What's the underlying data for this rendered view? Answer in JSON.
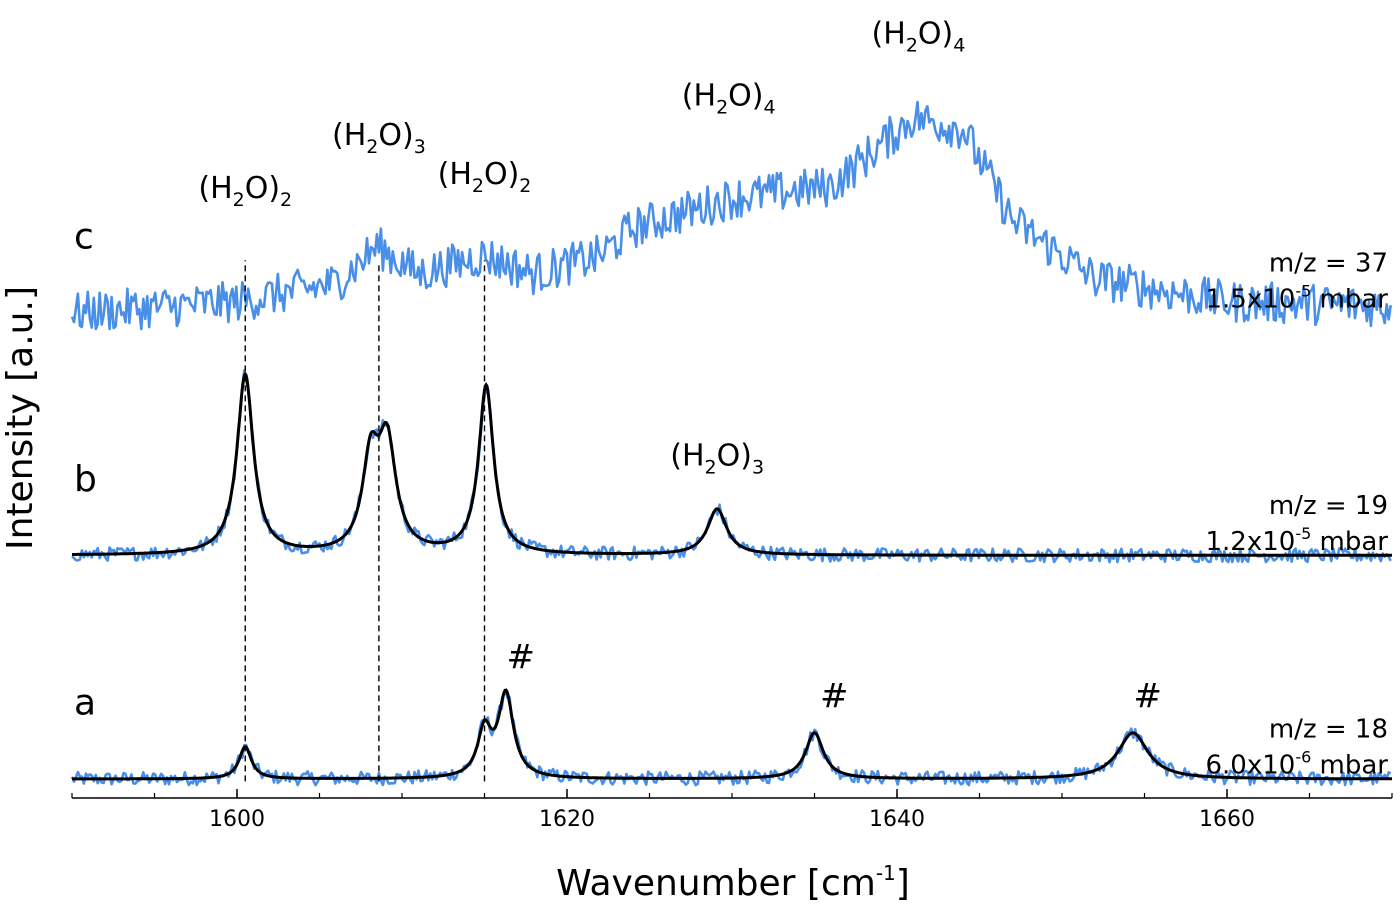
{
  "chart_data": {
    "type": "line",
    "xlabel": "Wavenumber [cm",
    "xlabel_sup": "-1",
    "xlabel_end": "]",
    "ylabel": "Intensity [a.u.]",
    "xlim": [
      1590,
      1670
    ],
    "ylim": [
      0,
      3.3
    ],
    "y_ticks_shown": false,
    "grid": false,
    "colors": {
      "data": "#4a8fe7",
      "fit": "#000000",
      "guide": "#000000"
    },
    "x_ticks": [
      {
        "value": 1600,
        "label": "1600"
      },
      {
        "value": 1620,
        "label": "1620"
      },
      {
        "value": 1640,
        "label": "1640"
      },
      {
        "value": 1660,
        "label": "1660"
      }
    ],
    "x_minor_step": 5,
    "panels": [
      {
        "id": "a",
        "letter": "a",
        "mz": "m/z = 18",
        "pressure_mantissa": "6.0x10",
        "pressure_exp": "-6",
        "pressure_unit": " mbar",
        "baseline": 0.03,
        "noise": 0.03,
        "peaks": [
          {
            "x": 1600.5,
            "amp": 0.14,
            "width": 0.45
          },
          {
            "x": 1615.0,
            "amp": 0.2,
            "width": 0.5
          },
          {
            "x": 1616.3,
            "amp": 0.36,
            "width": 0.55
          },
          {
            "x": 1635.0,
            "amp": 0.2,
            "width": 0.65
          },
          {
            "x": 1654.3,
            "amp": 0.2,
            "width": 1.1
          }
        ]
      },
      {
        "id": "b",
        "letter": "b",
        "mz": "m/z = 19",
        "pressure_mantissa": "1.2x10",
        "pressure_exp": "-5",
        "pressure_unit": " mbar",
        "baseline": 1.0,
        "noise": 0.03,
        "peaks": [
          {
            "x": 1600.5,
            "amp": 0.78,
            "width": 0.6
          },
          {
            "x": 1608.1,
            "amp": 0.38,
            "width": 0.6
          },
          {
            "x": 1609.1,
            "amp": 0.46,
            "width": 0.65
          },
          {
            "x": 1615.1,
            "amp": 0.73,
            "width": 0.55
          },
          {
            "x": 1629.1,
            "amp": 0.2,
            "width": 0.7
          }
        ]
      },
      {
        "id": "c",
        "letter": "c",
        "mz": "m/z = 37",
        "pressure_mantissa": "1.5x10",
        "pressure_exp": "-5",
        "pressure_unit": " mbar",
        "baseline": 2.05,
        "noise": 0.09,
        "envelope": [
          {
            "x": 1590,
            "y": 2.05
          },
          {
            "x": 1600,
            "y": 2.1
          },
          {
            "x": 1606,
            "y": 2.18
          },
          {
            "x": 1608.5,
            "y": 2.34
          },
          {
            "x": 1611,
            "y": 2.22
          },
          {
            "x": 1615,
            "y": 2.3
          },
          {
            "x": 1618,
            "y": 2.22
          },
          {
            "x": 1622,
            "y": 2.3
          },
          {
            "x": 1624,
            "y": 2.42
          },
          {
            "x": 1630,
            "y": 2.55
          },
          {
            "x": 1636,
            "y": 2.6
          },
          {
            "x": 1641,
            "y": 2.9
          },
          {
            "x": 1644,
            "y": 2.85
          },
          {
            "x": 1647,
            "y": 2.45
          },
          {
            "x": 1652,
            "y": 2.2
          },
          {
            "x": 1660,
            "y": 2.1
          },
          {
            "x": 1670,
            "y": 2.08
          }
        ]
      }
    ],
    "guide_lines": [
      {
        "x": 1600.5,
        "y_top": 2.28
      },
      {
        "x": 1608.6,
        "y_top": 2.26
      },
      {
        "x": 1615.0,
        "y_top": 2.28
      }
    ],
    "annotations": [
      {
        "base": "(H",
        "sub": "2",
        "rest": "O)",
        "post": "2",
        "x": 1600.5,
        "y": 2.55
      },
      {
        "base": "(H",
        "sub": "2",
        "rest": "O)",
        "post": "3",
        "x": 1608.6,
        "y": 2.78
      },
      {
        "base": "(H",
        "sub": "2",
        "rest": "O)",
        "post": "2",
        "x": 1615.0,
        "y": 2.61
      },
      {
        "base": "(H",
        "sub": "2",
        "rest": "O)",
        "post": "4",
        "x": 1629.8,
        "y": 2.95
      },
      {
        "base": "(H",
        "sub": "2",
        "rest": "O)",
        "post": "4",
        "x": 1641.3,
        "y": 3.22
      },
      {
        "base": "(H",
        "sub": "2",
        "rest": "O)",
        "post": "3",
        "x": 1629.1,
        "y": 1.39
      },
      {
        "base": "#",
        "x": 1617.2,
        "y": 0.51
      },
      {
        "base": "#",
        "x": 1636.2,
        "y": 0.34
      },
      {
        "base": "#",
        "x": 1655.2,
        "y": 0.34
      }
    ]
  }
}
